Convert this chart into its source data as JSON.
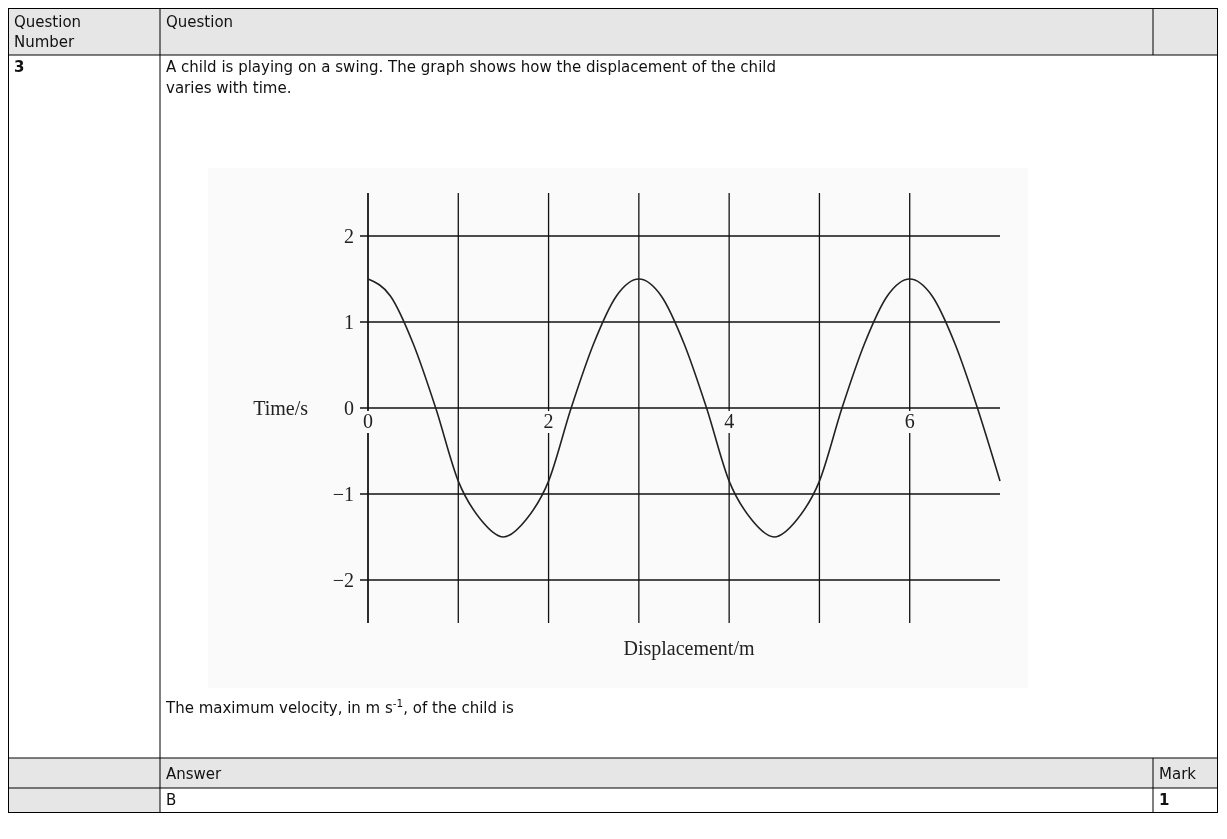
{
  "chart_data": {
    "type": "line",
    "xlabel": "Displacement/m",
    "ylabel": "Time/s",
    "x": [
      0,
      0.25,
      0.5,
      0.75,
      1,
      1.25,
      1.5,
      1.75,
      2,
      2.25,
      2.5,
      2.75,
      3,
      3.25,
      3.5,
      3.75,
      4,
      4.25,
      4.5,
      4.75,
      5,
      5.25,
      5.5,
      5.75,
      6,
      6.25,
      6.5,
      6.75,
      7
    ],
    "series": [
      {
        "color": "#222222",
        "values": [
          1.5,
          1.3,
          0.75,
          0,
          -0.85,
          -1.3,
          -1.5,
          -1.3,
          -0.85,
          0,
          0.75,
          1.3,
          1.5,
          1.3,
          0.75,
          0,
          -0.85,
          -1.3,
          -1.5,
          -1.3,
          -0.85,
          0,
          0.75,
          1.3,
          1.5,
          1.3,
          0.75,
          0,
          -0.85
        ]
      }
    ],
    "xlim": [
      0,
      7
    ],
    "xticks": [
      0,
      {
        "value": 1,
        "label": null
      },
      2,
      {
        "value": 3,
        "label": null
      },
      4,
      {
        "value": 5,
        "label": null
      },
      6
    ],
    "ylim": [
      -2.5,
      2.5
    ],
    "yticks": [
      -2,
      -1,
      0,
      1,
      2
    ],
    "grid": true,
    "marker": "none",
    "line_style": "solid",
    "annotations": [
      "Question Number",
      "Question",
      "3",
      "A child is playing on a swing. The graph shows how the displacement of the child varies with time.",
      "The maximum velocity, in m s$^{-1}$, of the child is",
      "Answer",
      "Mark",
      "B",
      "1"
    ]
  }
}
